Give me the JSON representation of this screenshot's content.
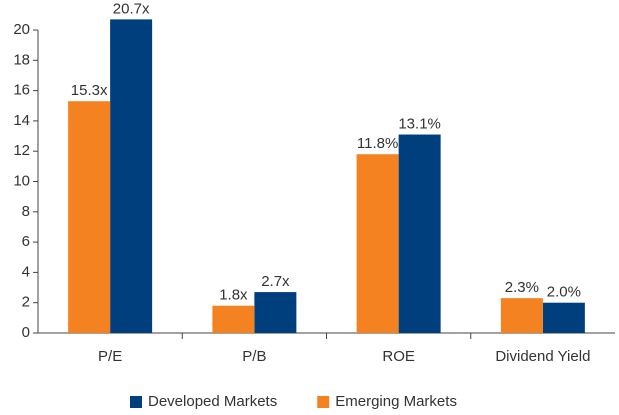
{
  "chart_data": {
    "type": "bar",
    "categories": [
      "P/E",
      "P/B",
      "ROE",
      "Dividend Yield"
    ],
    "series": [
      {
        "name": "Developed Markets",
        "color": "#003f7d",
        "values": [
          20.7,
          2.7,
          13.1,
          2.0
        ],
        "value_labels": [
          "20.7x",
          "2.7x",
          "13.1%",
          "2.0%"
        ]
      },
      {
        "name": "Emerging Markets",
        "color": "#f58220",
        "values": [
          15.3,
          1.8,
          11.8,
          2.3
        ],
        "value_labels": [
          "15.3x",
          "1.8x",
          "11.8%",
          "2.3%"
        ]
      }
    ],
    "ylim": [
      0,
      20
    ],
    "yticks": [
      0,
      2,
      4,
      6,
      8,
      10,
      12,
      14,
      16,
      18,
      20
    ],
    "legend": "bottom"
  }
}
